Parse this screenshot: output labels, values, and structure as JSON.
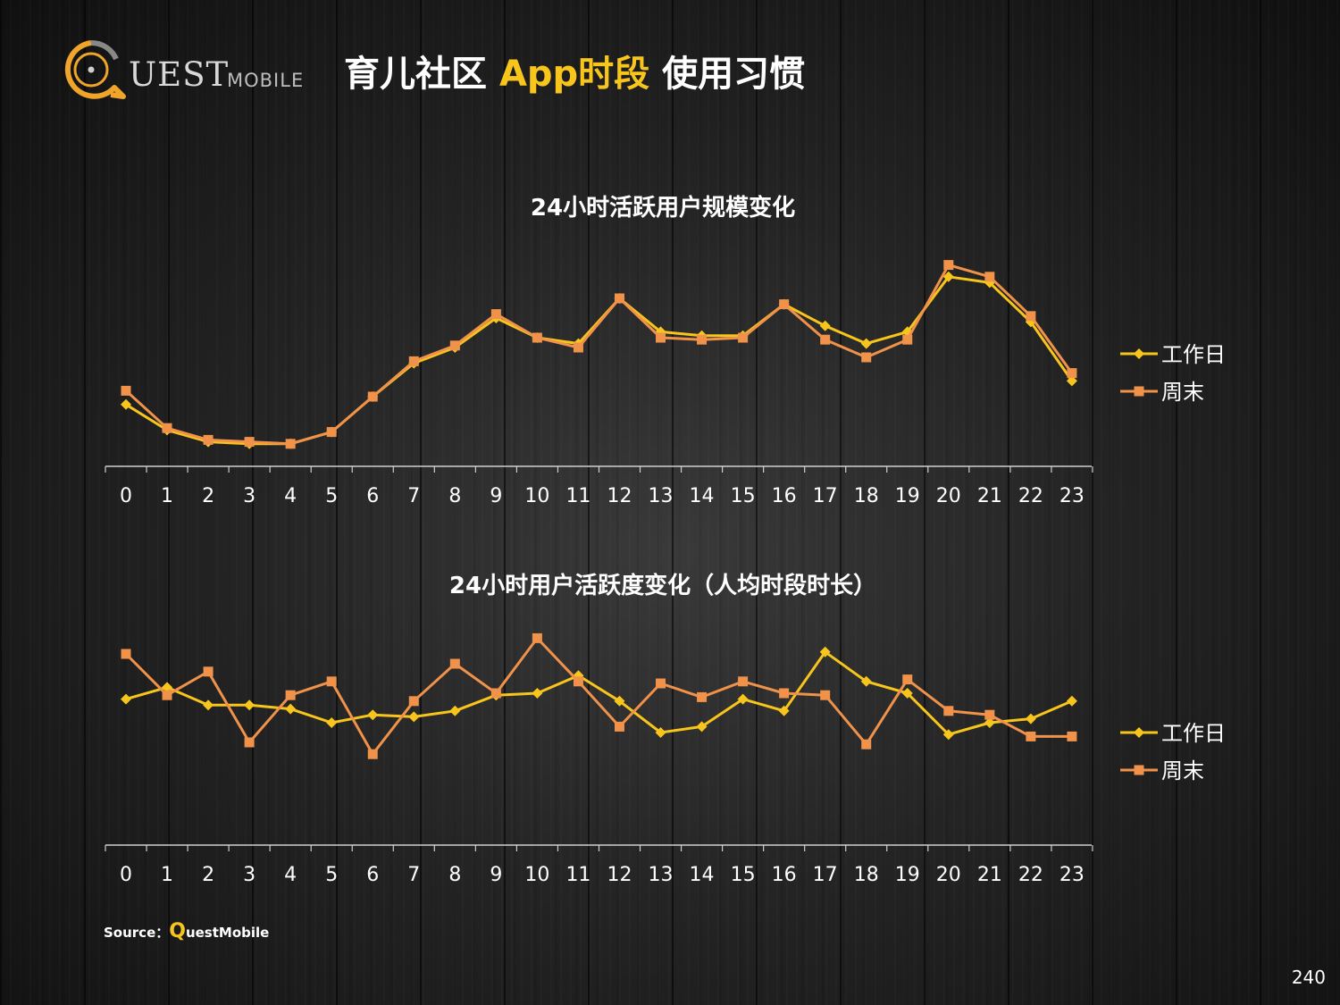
{
  "logo": {
    "main": "UEST",
    "sub": "MOBILE"
  },
  "header": {
    "title_part1": "育儿社区 ",
    "title_accent": "App时段",
    "title_part2": " 使用习惯"
  },
  "colors": {
    "workday": "#f7c51b",
    "weekend": "#f0924a",
    "axis": "#d0d0d0"
  },
  "chart_data": [
    {
      "type": "line",
      "title": "24小时活跃用户规模变化",
      "x": [
        "0",
        "1",
        "2",
        "3",
        "4",
        "5",
        "6",
        "7",
        "8",
        "9",
        "10",
        "11",
        "12",
        "13",
        "14",
        "15",
        "16",
        "17",
        "18",
        "19",
        "20",
        "21",
        "22",
        "23"
      ],
      "ylim": [
        0,
        100
      ],
      "legend_position": "right",
      "grid": false,
      "y_axis_visible": false,
      "series": [
        {
          "name": "工作日",
          "marker": "diamond",
          "values": [
            26,
            13,
            7,
            6,
            6,
            12,
            30,
            47,
            55,
            70,
            60,
            57,
            80,
            63,
            61,
            61,
            77,
            66,
            57,
            63,
            91,
            88,
            68,
            38
          ]
        },
        {
          "name": "周末",
          "marker": "square",
          "values": [
            33,
            14,
            8,
            7,
            6,
            12,
            30,
            48,
            56,
            72,
            60,
            55,
            80,
            60,
            59,
            60,
            77,
            59,
            50,
            59,
            97,
            91,
            71,
            42
          ]
        }
      ]
    },
    {
      "type": "line",
      "title": "24小时用户活跃度变化（人均时段时长）",
      "x": [
        "0",
        "1",
        "2",
        "3",
        "4",
        "5",
        "6",
        "7",
        "8",
        "9",
        "10",
        "11",
        "12",
        "13",
        "14",
        "15",
        "16",
        "17",
        "18",
        "19",
        "20",
        "21",
        "22",
        "23"
      ],
      "ylim": [
        0,
        100
      ],
      "legend_position": "right",
      "grid": false,
      "y_axis_visible": false,
      "series": [
        {
          "name": "工作日",
          "marker": "diamond",
          "values": [
            67,
            73,
            64,
            64,
            62,
            55,
            59,
            58,
            61,
            69,
            70,
            79,
            66,
            50,
            53,
            67,
            61,
            91,
            76,
            70,
            49,
            55,
            57,
            66
          ]
        },
        {
          "name": "周末",
          "marker": "square",
          "values": [
            90,
            69,
            81,
            45,
            69,
            76,
            39,
            66,
            85,
            70,
            98,
            76,
            53,
            75,
            68,
            76,
            70,
            69,
            44,
            77,
            61,
            59,
            48,
            48
          ]
        }
      ]
    }
  ],
  "footer": {
    "source_label": "Source：",
    "source_q": "Q",
    "source_rest": "uestMobile",
    "page": "240"
  }
}
